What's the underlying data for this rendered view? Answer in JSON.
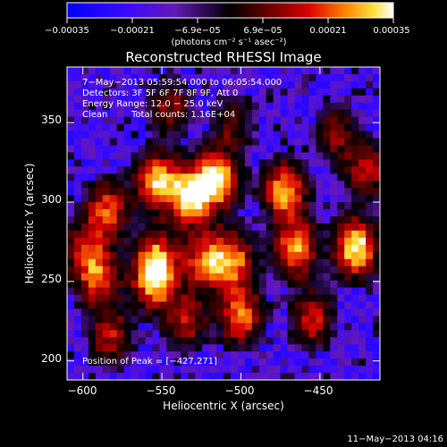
{
  "chart_data": {
    "type": "heatmap",
    "title": "Reconstructed RHESSI Image",
    "xlabel": "Heliocentric X (arcsec)",
    "ylabel": "Heliocentric Y (arcsec)",
    "xlim": [
      -610,
      -412
    ],
    "ylim": [
      188,
      385
    ],
    "x_ticks": [
      -600,
      -550,
      -500,
      -450
    ],
    "x_tick_labels": [
      "−600",
      "−550",
      "−500",
      "−450"
    ],
    "y_ticks": [
      200,
      250,
      300,
      350
    ],
    "y_tick_labels": [
      "200",
      "250",
      "300",
      "350"
    ],
    "colorbar": {
      "range": [
        -0.00035,
        0.00035
      ],
      "tick_labels": [
        "−0.00035",
        "−0.00021",
        "−6.9e−05",
        "6.9e−05",
        "0.00021",
        "0.00035"
      ],
      "unit_label": "(photons cm⁻² s⁻¹ asec⁻²)"
    },
    "annotations": {
      "time_range": "7−May−2013 05:59:54.000 to 06:05:54.000",
      "detectors": "Detectors: 3F 5F 6F 7F 8F 9F, Att 0",
      "energy_range": "Energy Range: 12.0 − 25.0 keV",
      "clean_label": "Clean",
      "total_counts": "Total counts: 1.16E+04",
      "peak_position": "Position of Peak = [−427,271]"
    },
    "sources": [
      {
        "x": -427,
        "y": 271,
        "value": 1.0
      },
      {
        "x": -532,
        "y": 303,
        "value": 0.9
      },
      {
        "x": -515,
        "y": 314,
        "value": 0.95
      },
      {
        "x": -553,
        "y": 313,
        "value": 0.85
      },
      {
        "x": -472,
        "y": 307,
        "value": 0.85
      },
      {
        "x": -465,
        "y": 271,
        "value": 0.8
      },
      {
        "x": -505,
        "y": 263,
        "value": 0.75
      },
      {
        "x": -523,
        "y": 263,
        "value": 0.7
      },
      {
        "x": -553,
        "y": 264,
        "value": 0.7
      },
      {
        "x": -585,
        "y": 294,
        "value": 0.7
      },
      {
        "x": -590,
        "y": 252,
        "value": 0.65
      },
      {
        "x": -555,
        "y": 249,
        "value": 0.7
      },
      {
        "x": -500,
        "y": 228,
        "value": 0.75
      },
      {
        "x": -582,
        "y": 215,
        "value": 0.55
      },
      {
        "x": -535,
        "y": 225,
        "value": 0.55
      },
      {
        "x": -455,
        "y": 226,
        "value": 0.6
      },
      {
        "x": -420,
        "y": 320,
        "value": 0.55
      },
      {
        "x": -600,
        "y": 270,
        "value": 0.5
      },
      {
        "x": -440,
        "y": 344,
        "value": 0.45
      },
      {
        "x": -545,
        "y": 360,
        "value": 0.45
      },
      {
        "x": -505,
        "y": 350,
        "value": 0.4
      }
    ],
    "date_stamp": "11−May−2013 04:16"
  }
}
